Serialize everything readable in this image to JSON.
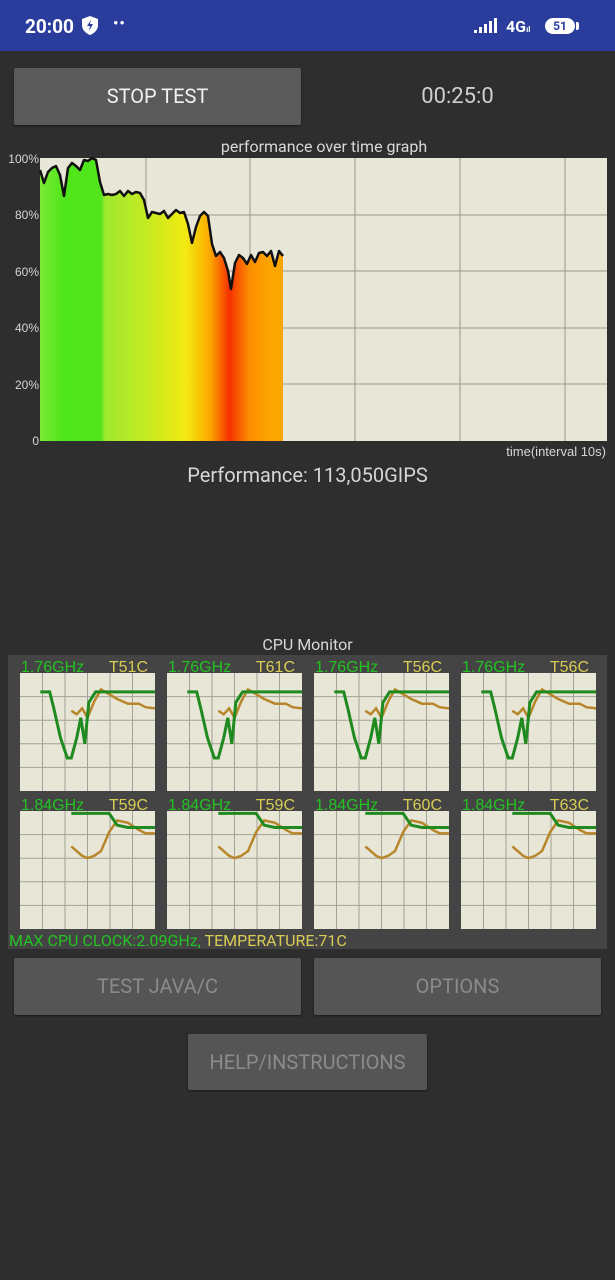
{
  "status_bar": {
    "time": "20:00",
    "dots": "••",
    "network": "4G",
    "network_suffix": "ıl",
    "battery": "51"
  },
  "header": {
    "stop_button": "STOP TEST",
    "timer": "00:25:0"
  },
  "graph": {
    "title": "performance over time graph",
    "y_ticks": [
      "100%",
      "80%",
      "60%",
      "40%",
      "20%",
      "0"
    ],
    "x_label": "time(interval 10s)"
  },
  "performance": {
    "text": "Performance: 113,050GIPS"
  },
  "cpu_monitor": {
    "title": "CPU Monitor",
    "cores": [
      {
        "freq": "1.76GHz",
        "temp": "T51C"
      },
      {
        "freq": "1.76GHz",
        "temp": "T61C"
      },
      {
        "freq": "1.76GHz",
        "temp": "T56C"
      },
      {
        "freq": "1.76GHz",
        "temp": "T56C"
      },
      {
        "freq": "1.84GHz",
        "temp": "T59C"
      },
      {
        "freq": "1.84GHz",
        "temp": "T59C"
      },
      {
        "freq": "1.84GHz",
        "temp": "T60C"
      },
      {
        "freq": "1.84GHz",
        "temp": "T63C"
      }
    ],
    "max_clock": "MAX CPU CLOCK:2.09GHz,",
    "temperature": "TEMPERATURE:71C"
  },
  "buttons": {
    "test_java": "TEST JAVA/C",
    "options": "OPTIONS",
    "help": "HELP/INSTRUCTIONS"
  },
  "colors": {
    "status_bar": "#2b3d9c",
    "graph_bg": "#e8e6d6",
    "freq_green": "#22c322",
    "temp_yellow": "#d9cc55",
    "temp_line": "#b8862a",
    "freq_line": "#1f8a1f"
  }
}
